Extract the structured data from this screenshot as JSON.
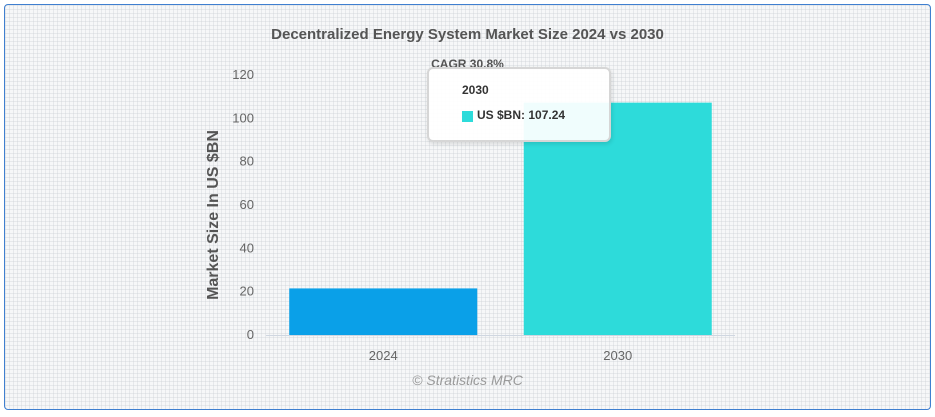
{
  "chart_data": {
    "type": "bar",
    "title": "Decentralized Energy System Market Size 2024 vs 2030",
    "subtitle": "CAGR 30.8%",
    "categories": [
      "2024",
      "2030"
    ],
    "series": [
      {
        "name": "US $BN",
        "values": [
          21.5,
          107.24
        ]
      }
    ],
    "bar_colors": [
      "#0aa0e8",
      "#2ddbda"
    ],
    "xlabel": "",
    "ylabel": "Market Size In US $BN",
    "ylim": [
      0,
      120
    ],
    "yticks": [
      "0",
      "20",
      "40",
      "60",
      "80",
      "100",
      "120"
    ],
    "grid": false,
    "legend": "none"
  },
  "tooltip": {
    "title": "2030",
    "text": "US $BN: 107.24",
    "color": "#2ddbda"
  },
  "credits": "© Stratistics MRC"
}
